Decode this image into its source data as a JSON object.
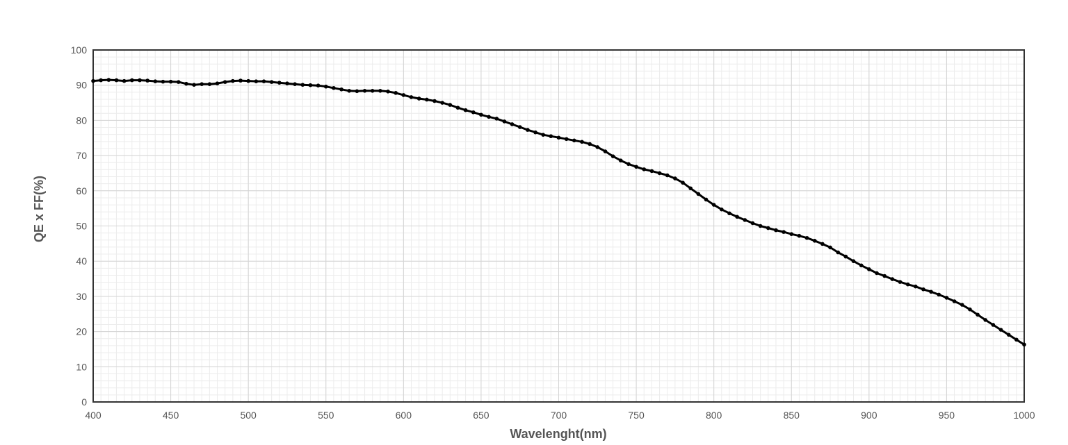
{
  "chart_data": {
    "type": "line",
    "title": "",
    "xlabel": "Wavelenght(nm)",
    "ylabel": "QE x FF(%)",
    "xlim": [
      400,
      1000
    ],
    "ylim": [
      0,
      100
    ],
    "x_ticks": [
      400,
      450,
      500,
      550,
      600,
      650,
      700,
      750,
      800,
      850,
      900,
      950,
      1000
    ],
    "y_ticks": [
      0,
      10,
      20,
      30,
      40,
      50,
      60,
      70,
      80,
      90,
      100
    ],
    "x_tick_labels": [
      "400",
      "450",
      "500",
      "550",
      "600",
      "650",
      "700",
      "750",
      "800",
      "850",
      "900",
      "950",
      "1000"
    ],
    "y_tick_labels": [
      "0",
      "10",
      "20",
      "30",
      "40",
      "50",
      "60",
      "70",
      "80",
      "90",
      "100"
    ],
    "grid": true,
    "legend": "none",
    "line_color": "#000000",
    "marker": "circle",
    "series": [
      {
        "x": [
          400,
          405,
          410,
          415,
          420,
          425,
          430,
          435,
          440,
          445,
          450,
          455,
          460,
          465,
          470,
          475,
          480,
          485,
          490,
          495,
          500,
          505,
          510,
          515,
          520,
          525,
          530,
          535,
          540,
          545,
          550,
          555,
          560,
          565,
          570,
          575,
          580,
          585,
          590,
          595,
          600,
          605,
          610,
          615,
          620,
          625,
          630,
          635,
          640,
          645,
          650,
          655,
          660,
          665,
          670,
          675,
          680,
          685,
          690,
          695,
          700,
          705,
          710,
          715,
          720,
          725,
          730,
          735,
          740,
          745,
          750,
          755,
          760,
          765,
          770,
          775,
          780,
          785,
          790,
          795,
          800,
          805,
          810,
          815,
          820,
          825,
          830,
          835,
          840,
          845,
          850,
          855,
          860,
          865,
          870,
          875,
          880,
          885,
          890,
          895,
          900,
          905,
          910,
          915,
          920,
          925,
          930,
          935,
          940,
          945,
          950,
          955,
          960,
          965,
          970,
          975,
          980,
          985,
          990,
          995,
          1000
        ],
        "values": [
          91.2,
          91.4,
          91.5,
          91.4,
          91.2,
          91.4,
          91.4,
          91.3,
          91.1,
          91.0,
          91.0,
          90.9,
          90.4,
          90.1,
          90.3,
          90.3,
          90.5,
          90.9,
          91.2,
          91.3,
          91.2,
          91.1,
          91.1,
          90.9,
          90.7,
          90.5,
          90.3,
          90.1,
          90.0,
          89.9,
          89.6,
          89.2,
          88.8,
          88.4,
          88.3,
          88.4,
          88.4,
          88.4,
          88.2,
          87.8,
          87.2,
          86.6,
          86.2,
          85.9,
          85.5,
          85.0,
          84.4,
          83.6,
          82.9,
          82.3,
          81.6,
          81.0,
          80.5,
          79.7,
          78.9,
          78.1,
          77.3,
          76.6,
          75.9,
          75.5,
          75.1,
          74.7,
          74.3,
          73.9,
          73.3,
          72.4,
          71.2,
          69.8,
          68.6,
          67.6,
          66.8,
          66.1,
          65.6,
          65.0,
          64.4,
          63.5,
          62.3,
          60.7,
          59.1,
          57.5,
          56.0,
          54.7,
          53.6,
          52.6,
          51.7,
          50.8,
          50.0,
          49.4,
          48.8,
          48.3,
          47.7,
          47.2,
          46.6,
          45.8,
          44.9,
          43.9,
          42.5,
          41.3,
          40.0,
          38.8,
          37.7,
          36.6,
          35.8,
          34.9,
          34.1,
          33.4,
          32.8,
          32.0,
          31.3,
          30.5,
          29.6,
          28.6,
          27.6,
          26.3,
          24.8,
          23.3,
          21.9,
          20.5,
          19.1,
          17.7,
          16.3
        ]
      }
    ]
  }
}
